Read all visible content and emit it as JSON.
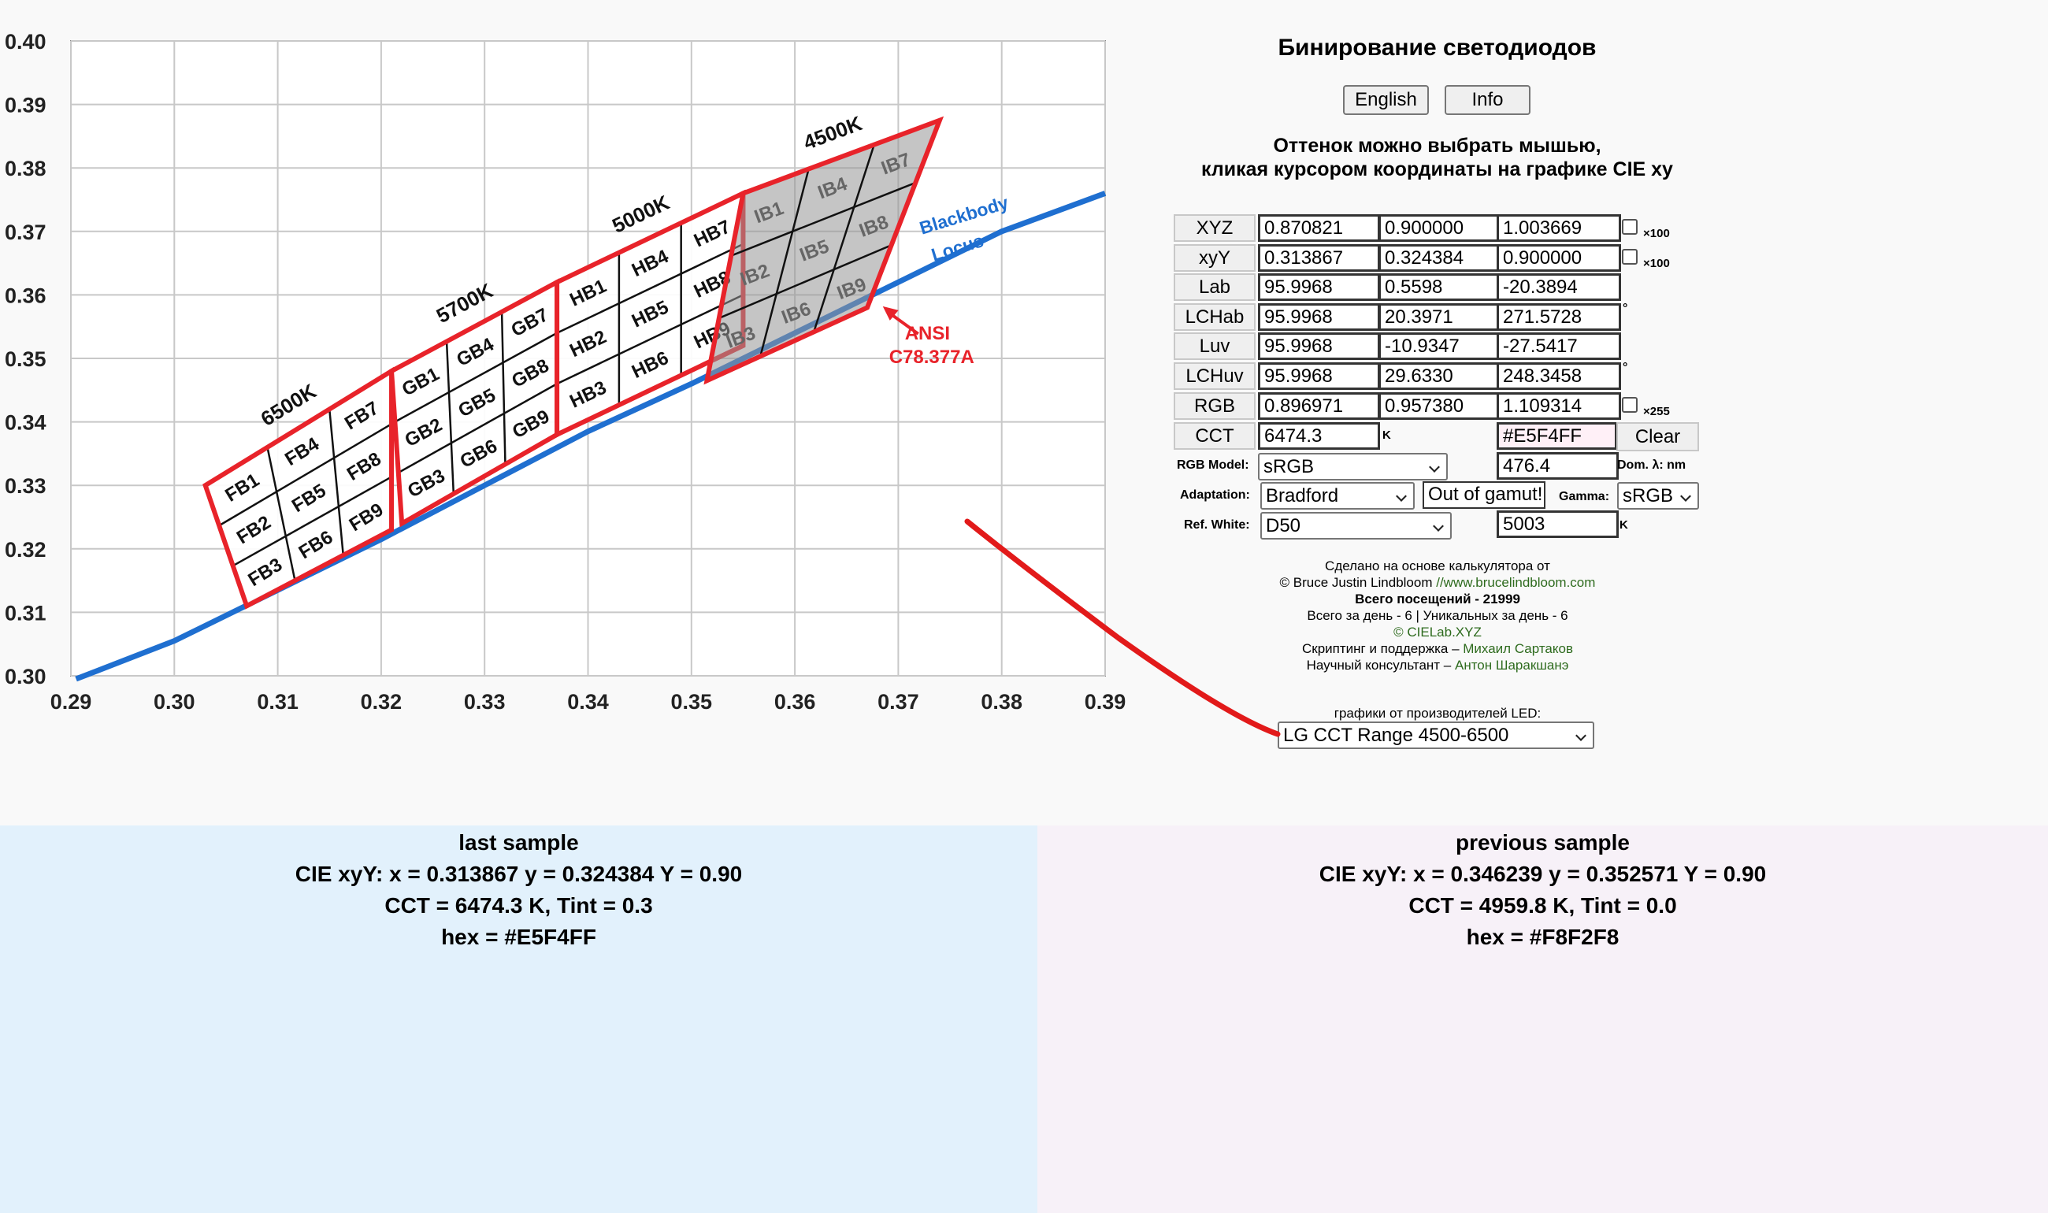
{
  "app": {
    "title": "Бинирование светодиодов",
    "buttons": {
      "english": "English",
      "info": "Info"
    },
    "hint_line1": "Оттенок можно выбрать мышью,",
    "hint_line2": "кликая курсором координаты на графике CIE xy"
  },
  "table": {
    "rows": [
      {
        "label": "XYZ",
        "values": [
          "0.870821",
          "0.900000",
          "1.003669"
        ],
        "check_label": "×100"
      },
      {
        "label": "xyY",
        "values": [
          "0.313867",
          "0.324384",
          "0.900000"
        ],
        "check_label": "×100"
      },
      {
        "label": "Lab",
        "values": [
          "95.9968",
          "0.5598",
          "-20.3894"
        ]
      },
      {
        "label": "LCHab",
        "values": [
          "95.9968",
          "20.3971",
          "271.5728"
        ],
        "unit": "°"
      },
      {
        "label": "Luv",
        "values": [
          "95.9968",
          "-10.9347",
          "-27.5417"
        ]
      },
      {
        "label": "LCHuv",
        "values": [
          "95.9968",
          "29.6330",
          "248.3458"
        ],
        "unit": "°"
      },
      {
        "label": "RGB",
        "values": [
          "0.896971",
          "0.957380",
          "1.109314"
        ],
        "check_label": "×255"
      }
    ],
    "cct": {
      "label": "CCT",
      "value": "6474.3",
      "unit": "K",
      "hex": "#E5F4FF",
      "clear": "Clear"
    },
    "rgb_model": {
      "label": "RGB Model:",
      "value": "sRGB"
    },
    "dominant": {
      "value": "476.4",
      "label": "Dom. λ: nm"
    },
    "adaptation": {
      "label": "Adaptation:",
      "value": "Bradford"
    },
    "gamut": "Out of gamut!",
    "gamma": {
      "label": "Gamma:",
      "value": "sRGB"
    },
    "ref_white": {
      "label": "Ref. White:",
      "value": "D50",
      "temp": "5003",
      "unit": "K"
    }
  },
  "credits": {
    "line1": "Сделано на основе калькулятора от",
    "line2_a": "© Bruce Justin Lindbloom ",
    "line2_b": "//www.brucelindbloom.com",
    "visits": "Всего посещений - 21999",
    "daily": "Всего за день - 6 | Уникальных за день - 6",
    "site": "© CIELab.XYZ",
    "script_a": "Скриптинг и поддержка – ",
    "script_b": "Михаил Сартаков",
    "consult_a": "Научный консультант – ",
    "consult_b": "Антон Шаракшанэ",
    "graphs_label": "графики от производителей LED:",
    "graphs_value": "LG CCT Range 4500-6500"
  },
  "samples": {
    "last": {
      "title": "last sample",
      "xyY": "CIE xyY: x = 0.313867 y = 0.324384 Y = 0.90",
      "cct": "CCT = 6474.3 K, Tint = 0.3",
      "hex": "hex = #E5F4FF",
      "bg": "#E5F4FF"
    },
    "previous": {
      "title": "previous sample",
      "xyY": "CIE xyY: x = 0.346239 y = 0.352571 Y = 0.90",
      "cct": "CCT = 4959.8 K, Tint = 0.0",
      "hex": "hex = #F8F2F8",
      "bg": "#F8F2F8"
    }
  },
  "chart_data": {
    "type": "scatter",
    "xlim": [
      0.29,
      0.39
    ],
    "ylim": [
      0.3,
      0.4
    ],
    "x_ticks": [
      "0.29",
      "0.30",
      "0.31",
      "0.32",
      "0.33",
      "0.34",
      "0.35",
      "0.36",
      "0.37",
      "0.38",
      "0.39"
    ],
    "y_ticks": [
      "0.30",
      "0.31",
      "0.32",
      "0.33",
      "0.34",
      "0.35",
      "0.36",
      "0.37",
      "0.38",
      "0.39",
      "0.40"
    ],
    "grid": true,
    "locus_label": [
      "Blackbody",
      "Locus"
    ],
    "locus_color": "#1f6fd0",
    "bin_color": "#e8232a",
    "annotation": [
      "ANSI",
      "C78.377A"
    ],
    "blackbody_locus": [
      [
        0.2905,
        0.2995
      ],
      [
        0.3,
        0.3055
      ],
      [
        0.31,
        0.3135
      ],
      [
        0.32,
        0.3215
      ],
      [
        0.33,
        0.33
      ],
      [
        0.34,
        0.3385
      ],
      [
        0.35,
        0.346
      ],
      [
        0.36,
        0.354
      ],
      [
        0.37,
        0.362
      ],
      [
        0.38,
        0.37
      ],
      [
        0.39,
        0.376
      ]
    ],
    "groups": [
      {
        "cct": "6500K",
        "corners": [
          [
            0.303,
            0.33
          ],
          [
            0.321,
            0.348
          ],
          [
            0.321,
            0.323
          ],
          [
            0.307,
            0.311
          ]
        ],
        "bins": [
          "FB1",
          "FB2",
          "FB3",
          "FB4",
          "FB5",
          "FB6",
          "FB7",
          "FB8",
          "FB9"
        ],
        "shaded": false
      },
      {
        "cct": "5700K",
        "corners": [
          [
            0.321,
            0.348
          ],
          [
            0.337,
            0.362
          ],
          [
            0.337,
            0.338
          ],
          [
            0.322,
            0.324
          ]
        ],
        "bins": [
          "GB1",
          "GB2",
          "GB3",
          "GB4",
          "GB5",
          "GB6",
          "GB7",
          "GB8",
          "GB9"
        ],
        "shaded": false
      },
      {
        "cct": "5000K",
        "corners": [
          [
            0.337,
            0.362
          ],
          [
            0.355,
            0.376
          ],
          [
            0.355,
            0.352
          ],
          [
            0.337,
            0.338
          ]
        ],
        "bins": [
          "HB1",
          "HB2",
          "HB3",
          "HB4",
          "HB5",
          "HB6",
          "HB7",
          "HB8",
          "HB9"
        ],
        "shaded": false
      },
      {
        "cct": "4500K",
        "corners": [
          [
            0.355,
            0.376
          ],
          [
            0.374,
            0.3875
          ],
          [
            0.367,
            0.358
          ],
          [
            0.3515,
            0.3465
          ]
        ],
        "bins": [
          "IB1",
          "IB2",
          "IB3",
          "IB4",
          "IB5",
          "IB6",
          "IB7",
          "IB8",
          "IB9"
        ],
        "shaded": true
      }
    ]
  }
}
